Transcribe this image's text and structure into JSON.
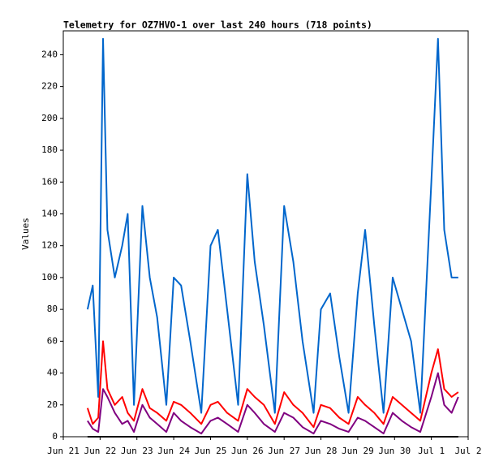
{
  "chart_data": {
    "type": "line",
    "title": "Telemetry for OZ7HVO-1 over last 240 hours (718 points)",
    "y_label": "Values",
    "x": [
      21.66,
      21.8,
      21.95,
      22.08,
      22.2,
      22.4,
      22.6,
      22.75,
      22.92,
      23.15,
      23.35,
      23.55,
      23.8,
      24.0,
      24.2,
      24.45,
      24.75,
      25.0,
      25.2,
      25.45,
      25.75,
      26.0,
      26.2,
      26.45,
      26.75,
      27.0,
      27.25,
      27.5,
      27.8,
      28.0,
      28.25,
      28.5,
      28.75,
      29.0,
      29.2,
      29.45,
      29.7,
      29.95,
      30.2,
      30.45,
      30.7,
      31.0,
      31.18,
      31.35,
      31.55,
      31.73
    ],
    "series": [
      {
        "color": "#0066cc",
        "values": [
          80,
          95,
          25,
          250,
          130,
          100,
          120,
          140,
          20,
          145,
          100,
          75,
          20,
          100,
          95,
          60,
          15,
          120,
          130,
          80,
          20,
          165,
          110,
          70,
          15,
          145,
          110,
          60,
          15,
          80,
          90,
          50,
          15,
          90,
          130,
          70,
          15,
          100,
          80,
          60,
          15,
          160,
          250,
          130,
          100,
          100
        ]
      },
      {
        "color": "#ff0000",
        "values": [
          18,
          8,
          12,
          60,
          30,
          20,
          25,
          15,
          10,
          30,
          18,
          15,
          10,
          22,
          20,
          15,
          8,
          20,
          22,
          15,
          10,
          30,
          25,
          20,
          8,
          28,
          20,
          15,
          6,
          20,
          18,
          12,
          8,
          25,
          20,
          15,
          8,
          25,
          20,
          15,
          10,
          40,
          55,
          30,
          25,
          28
        ]
      },
      {
        "color": "#800080",
        "values": [
          10,
          5,
          3,
          30,
          25,
          15,
          8,
          10,
          3,
          20,
          12,
          8,
          3,
          15,
          10,
          6,
          2,
          10,
          12,
          8,
          3,
          20,
          15,
          8,
          3,
          15,
          12,
          6,
          2,
          10,
          8,
          5,
          3,
          12,
          10,
          6,
          2,
          15,
          10,
          6,
          3,
          25,
          40,
          20,
          15,
          25
        ]
      },
      {
        "color": "#000000",
        "values": [
          0,
          0,
          0,
          0,
          0,
          0,
          0,
          0,
          0,
          0,
          0,
          0,
          0,
          0,
          0,
          0,
          0,
          0,
          0,
          0,
          0,
          0,
          0,
          0,
          0,
          0,
          0,
          0,
          0,
          0,
          0,
          0,
          0,
          0,
          0,
          0,
          0,
          0,
          0,
          0,
          0,
          0,
          0,
          0,
          0,
          0
        ]
      }
    ],
    "xlim": [
      21,
      32
    ],
    "xticks": [
      {
        "value": 21,
        "label": "Jun 21"
      },
      {
        "value": 22,
        "label": "Jun 22"
      },
      {
        "value": 23,
        "label": "Jun 23"
      },
      {
        "value": 24,
        "label": "Jun 24"
      },
      {
        "value": 25,
        "label": "Jun 25"
      },
      {
        "value": 26,
        "label": "Jun 26"
      },
      {
        "value": 27,
        "label": "Jun 27"
      },
      {
        "value": 28,
        "label": "Jun 28"
      },
      {
        "value": 29,
        "label": "Jun 29"
      },
      {
        "value": 30,
        "label": "Jun 30"
      },
      {
        "value": 31,
        "label": "Jul 1"
      },
      {
        "value": 32,
        "label": "Jul 2"
      }
    ],
    "ylim": [
      0,
      255
    ],
    "yticks": [
      0,
      20,
      40,
      60,
      80,
      100,
      120,
      140,
      160,
      180,
      200,
      220,
      240
    ]
  }
}
